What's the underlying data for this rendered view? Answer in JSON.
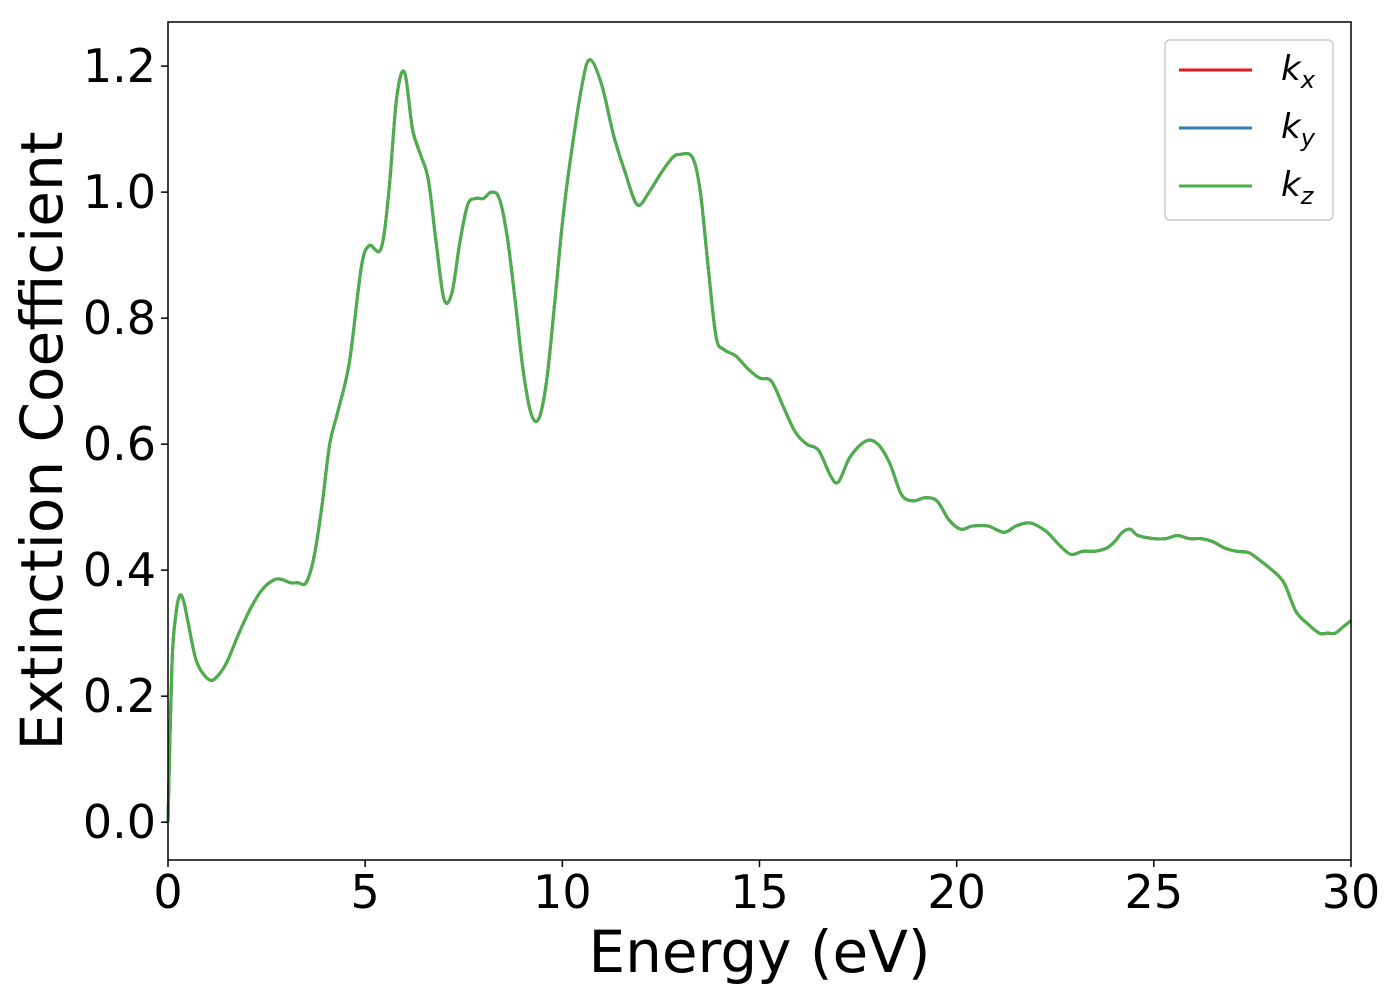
{
  "chart_data": {
    "type": "line",
    "xlabel": "Energy (eV)",
    "ylabel": "Extinction Coefficient",
    "xlim": [
      0,
      30
    ],
    "ylim": [
      -0.06,
      1.27
    ],
    "xticks": [
      0,
      5,
      10,
      15,
      20,
      25,
      30
    ],
    "xtick_labels": [
      "0",
      "5",
      "10",
      "15",
      "20",
      "25",
      "30"
    ],
    "yticks": [
      0.0,
      0.2,
      0.4,
      0.6,
      0.8,
      1.0,
      1.2
    ],
    "ytick_labels": [
      "0.0",
      "0.2",
      "0.4",
      "0.6",
      "0.8",
      "1.0",
      "1.2"
    ],
    "grid": false,
    "legend_position": "top-right",
    "x": [
      0,
      0.1,
      0.2,
      0.3,
      0.4,
      0.5,
      0.7,
      0.9,
      1.1,
      1.3,
      1.5,
      1.8,
      2.1,
      2.4,
      2.7,
      2.9,
      3.1,
      3.3,
      3.5,
      3.7,
      3.9,
      4.1,
      4.3,
      4.6,
      4.9,
      5.1,
      5.4,
      5.6,
      5.8,
      6.0,
      6.2,
      6.4,
      6.6,
      6.8,
      7.0,
      7.2,
      7.4,
      7.6,
      7.8,
      8.0,
      8.2,
      8.4,
      8.6,
      8.8,
      9.0,
      9.2,
      9.4,
      9.6,
      9.8,
      10.0,
      10.2,
      10.5,
      10.7,
      11.0,
      11.3,
      11.6,
      11.9,
      12.2,
      12.5,
      12.8,
      13.0,
      13.3,
      13.5,
      13.7,
      13.9,
      14.1,
      14.4,
      14.7,
      15.0,
      15.3,
      15.6,
      15.9,
      16.2,
      16.5,
      16.8,
      17.0,
      17.3,
      17.7,
      18.0,
      18.3,
      18.6,
      18.9,
      19.2,
      19.5,
      19.8,
      20.1,
      20.4,
      20.8,
      21.2,
      21.5,
      21.8,
      22.0,
      22.3,
      22.6,
      22.9,
      23.2,
      23.5,
      23.8,
      24.0,
      24.2,
      24.4,
      24.6,
      25.0,
      25.3,
      25.6,
      25.9,
      26.2,
      26.5,
      26.8,
      27.1,
      27.4,
      27.7,
      28.0,
      28.3,
      28.6,
      28.9,
      29.2,
      29.4,
      29.6,
      29.8,
      30.0
    ],
    "series": [
      {
        "name": "kx",
        "color": "#e41a1c",
        "values": [
          0.0,
          0.25,
          0.33,
          0.36,
          0.35,
          0.32,
          0.26,
          0.235,
          0.225,
          0.235,
          0.255,
          0.3,
          0.34,
          0.37,
          0.385,
          0.385,
          0.38,
          0.38,
          0.38,
          0.42,
          0.5,
          0.6,
          0.65,
          0.73,
          0.88,
          0.915,
          0.91,
          1.0,
          1.15,
          1.19,
          1.1,
          1.06,
          1.02,
          0.92,
          0.83,
          0.84,
          0.92,
          0.98,
          0.99,
          0.99,
          1.0,
          0.99,
          0.93,
          0.83,
          0.72,
          0.65,
          0.64,
          0.7,
          0.82,
          0.95,
          1.05,
          1.17,
          1.21,
          1.17,
          1.09,
          1.03,
          0.98,
          1.0,
          1.03,
          1.055,
          1.06,
          1.055,
          1.0,
          0.88,
          0.77,
          0.75,
          0.74,
          0.72,
          0.705,
          0.7,
          0.66,
          0.62,
          0.6,
          0.59,
          0.55,
          0.54,
          0.58,
          0.605,
          0.6,
          0.57,
          0.52,
          0.51,
          0.515,
          0.51,
          0.48,
          0.465,
          0.47,
          0.47,
          0.46,
          0.47,
          0.475,
          0.472,
          0.46,
          0.44,
          0.425,
          0.43,
          0.43,
          0.435,
          0.445,
          0.46,
          0.465,
          0.455,
          0.45,
          0.45,
          0.455,
          0.45,
          0.45,
          0.445,
          0.435,
          0.43,
          0.428,
          0.415,
          0.4,
          0.38,
          0.335,
          0.315,
          0.3,
          0.3,
          0.3,
          0.31,
          0.32
        ]
      },
      {
        "name": "ky",
        "color": "#377eb8",
        "values": [
          0.0,
          0.25,
          0.33,
          0.36,
          0.35,
          0.32,
          0.26,
          0.235,
          0.225,
          0.235,
          0.255,
          0.3,
          0.34,
          0.37,
          0.385,
          0.385,
          0.38,
          0.38,
          0.38,
          0.42,
          0.5,
          0.6,
          0.65,
          0.73,
          0.88,
          0.915,
          0.91,
          1.0,
          1.15,
          1.19,
          1.1,
          1.06,
          1.02,
          0.92,
          0.83,
          0.84,
          0.92,
          0.98,
          0.99,
          0.99,
          1.0,
          0.99,
          0.93,
          0.83,
          0.72,
          0.65,
          0.64,
          0.7,
          0.82,
          0.95,
          1.05,
          1.17,
          1.21,
          1.17,
          1.09,
          1.03,
          0.98,
          1.0,
          1.03,
          1.055,
          1.06,
          1.055,
          1.0,
          0.88,
          0.77,
          0.75,
          0.74,
          0.72,
          0.705,
          0.7,
          0.66,
          0.62,
          0.6,
          0.59,
          0.55,
          0.54,
          0.58,
          0.605,
          0.6,
          0.57,
          0.52,
          0.51,
          0.515,
          0.51,
          0.48,
          0.465,
          0.47,
          0.47,
          0.46,
          0.47,
          0.475,
          0.472,
          0.46,
          0.44,
          0.425,
          0.43,
          0.43,
          0.435,
          0.445,
          0.46,
          0.465,
          0.455,
          0.45,
          0.45,
          0.455,
          0.45,
          0.45,
          0.445,
          0.435,
          0.43,
          0.428,
          0.415,
          0.4,
          0.38,
          0.335,
          0.315,
          0.3,
          0.3,
          0.3,
          0.31,
          0.32
        ]
      },
      {
        "name": "kz",
        "color": "#4daf4a",
        "values": [
          0.0,
          0.25,
          0.33,
          0.36,
          0.35,
          0.32,
          0.26,
          0.235,
          0.225,
          0.235,
          0.255,
          0.3,
          0.34,
          0.37,
          0.385,
          0.385,
          0.38,
          0.38,
          0.38,
          0.42,
          0.5,
          0.6,
          0.65,
          0.73,
          0.88,
          0.915,
          0.91,
          1.0,
          1.15,
          1.19,
          1.1,
          1.06,
          1.02,
          0.92,
          0.83,
          0.84,
          0.92,
          0.98,
          0.99,
          0.99,
          1.0,
          0.99,
          0.93,
          0.83,
          0.72,
          0.65,
          0.64,
          0.7,
          0.82,
          0.95,
          1.05,
          1.17,
          1.21,
          1.17,
          1.09,
          1.03,
          0.98,
          1.0,
          1.03,
          1.055,
          1.06,
          1.055,
          1.0,
          0.88,
          0.77,
          0.75,
          0.74,
          0.72,
          0.705,
          0.7,
          0.66,
          0.62,
          0.6,
          0.59,
          0.55,
          0.54,
          0.58,
          0.605,
          0.6,
          0.57,
          0.52,
          0.51,
          0.515,
          0.51,
          0.48,
          0.465,
          0.47,
          0.47,
          0.46,
          0.47,
          0.475,
          0.472,
          0.46,
          0.44,
          0.425,
          0.43,
          0.43,
          0.435,
          0.445,
          0.46,
          0.465,
          0.455,
          0.45,
          0.45,
          0.455,
          0.45,
          0.45,
          0.445,
          0.435,
          0.43,
          0.428,
          0.415,
          0.4,
          0.38,
          0.335,
          0.315,
          0.3,
          0.3,
          0.3,
          0.31,
          0.32
        ]
      }
    ],
    "legend": [
      {
        "base": "k",
        "sub": "x",
        "color": "#e41a1c"
      },
      {
        "base": "k",
        "sub": "y",
        "color": "#377eb8"
      },
      {
        "base": "k",
        "sub": "z",
        "color": "#4daf4a"
      }
    ]
  }
}
